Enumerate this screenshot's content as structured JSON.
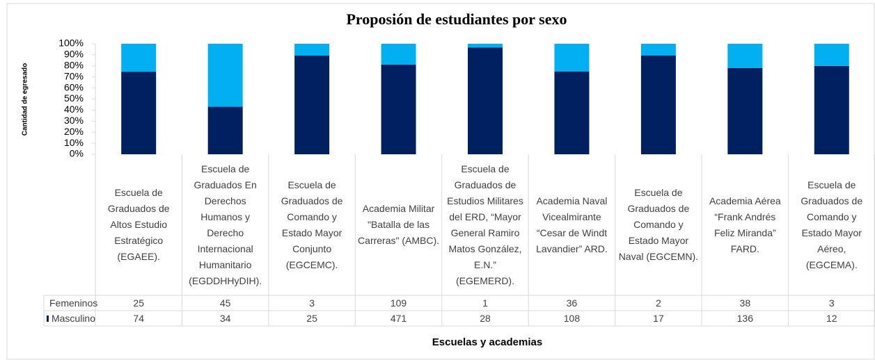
{
  "chart_data": {
    "type": "stacked_bar_100",
    "title": "Proposión de estudiantes por sexo",
    "y_label": "Cantidad de egresado",
    "x_label": "Escuelas y academias",
    "categories": [
      "Escuela de Graduados de Altos Estudio Estratégico (EGAEE).",
      "Escuela de Graduados En Derechos Humanos y Derecho Internacional Humanitario (EGDDHHyDIH).",
      "Escuela de Graduados de Comando y Estado Mayor Conjunto (EGCEMC).",
      "Academia Militar \"Batalla de las Carreras\" (AMBC).",
      "Escuela de Graduados de Estudios Militares del ERD, “Mayor General Ramiro Matos González, E.N.” (EGEMERD).",
      "Academia Naval Vicealmirante “Cesar de Windt Lavandier” ARD.",
      "Escuela de Graduados de Comando y Estado Mayor Naval (EGCEMN).",
      "Academia Aérea “Frank Andrés Feliz Miranda” FARD.",
      "Escuela de Graduados de Comando y Estado Mayor Aéreo, (EGCEMA)."
    ],
    "series": [
      {
        "name": "Femeninos",
        "color": "#00b0f0",
        "values": [
          25,
          45,
          3,
          109,
          1,
          36,
          2,
          38,
          3
        ]
      },
      {
        "name": "Masculino",
        "color": "#002060",
        "values": [
          74,
          34,
          25,
          471,
          28,
          108,
          17,
          136,
          12
        ]
      }
    ],
    "ylim": [
      0,
      100
    ],
    "yticks": [
      {
        "value": 0,
        "label": "0%"
      },
      {
        "value": 10,
        "label": "10%"
      },
      {
        "value": 20,
        "label": "20%"
      },
      {
        "value": 30,
        "label": "30%"
      },
      {
        "value": 40,
        "label": "40%"
      },
      {
        "value": 50,
        "label": "50%"
      },
      {
        "value": 60,
        "label": "60%"
      },
      {
        "value": 70,
        "label": "70%"
      },
      {
        "value": 80,
        "label": "80%"
      },
      {
        "value": 90,
        "label": "90%"
      },
      {
        "value": 100,
        "label": "100%"
      }
    ]
  }
}
